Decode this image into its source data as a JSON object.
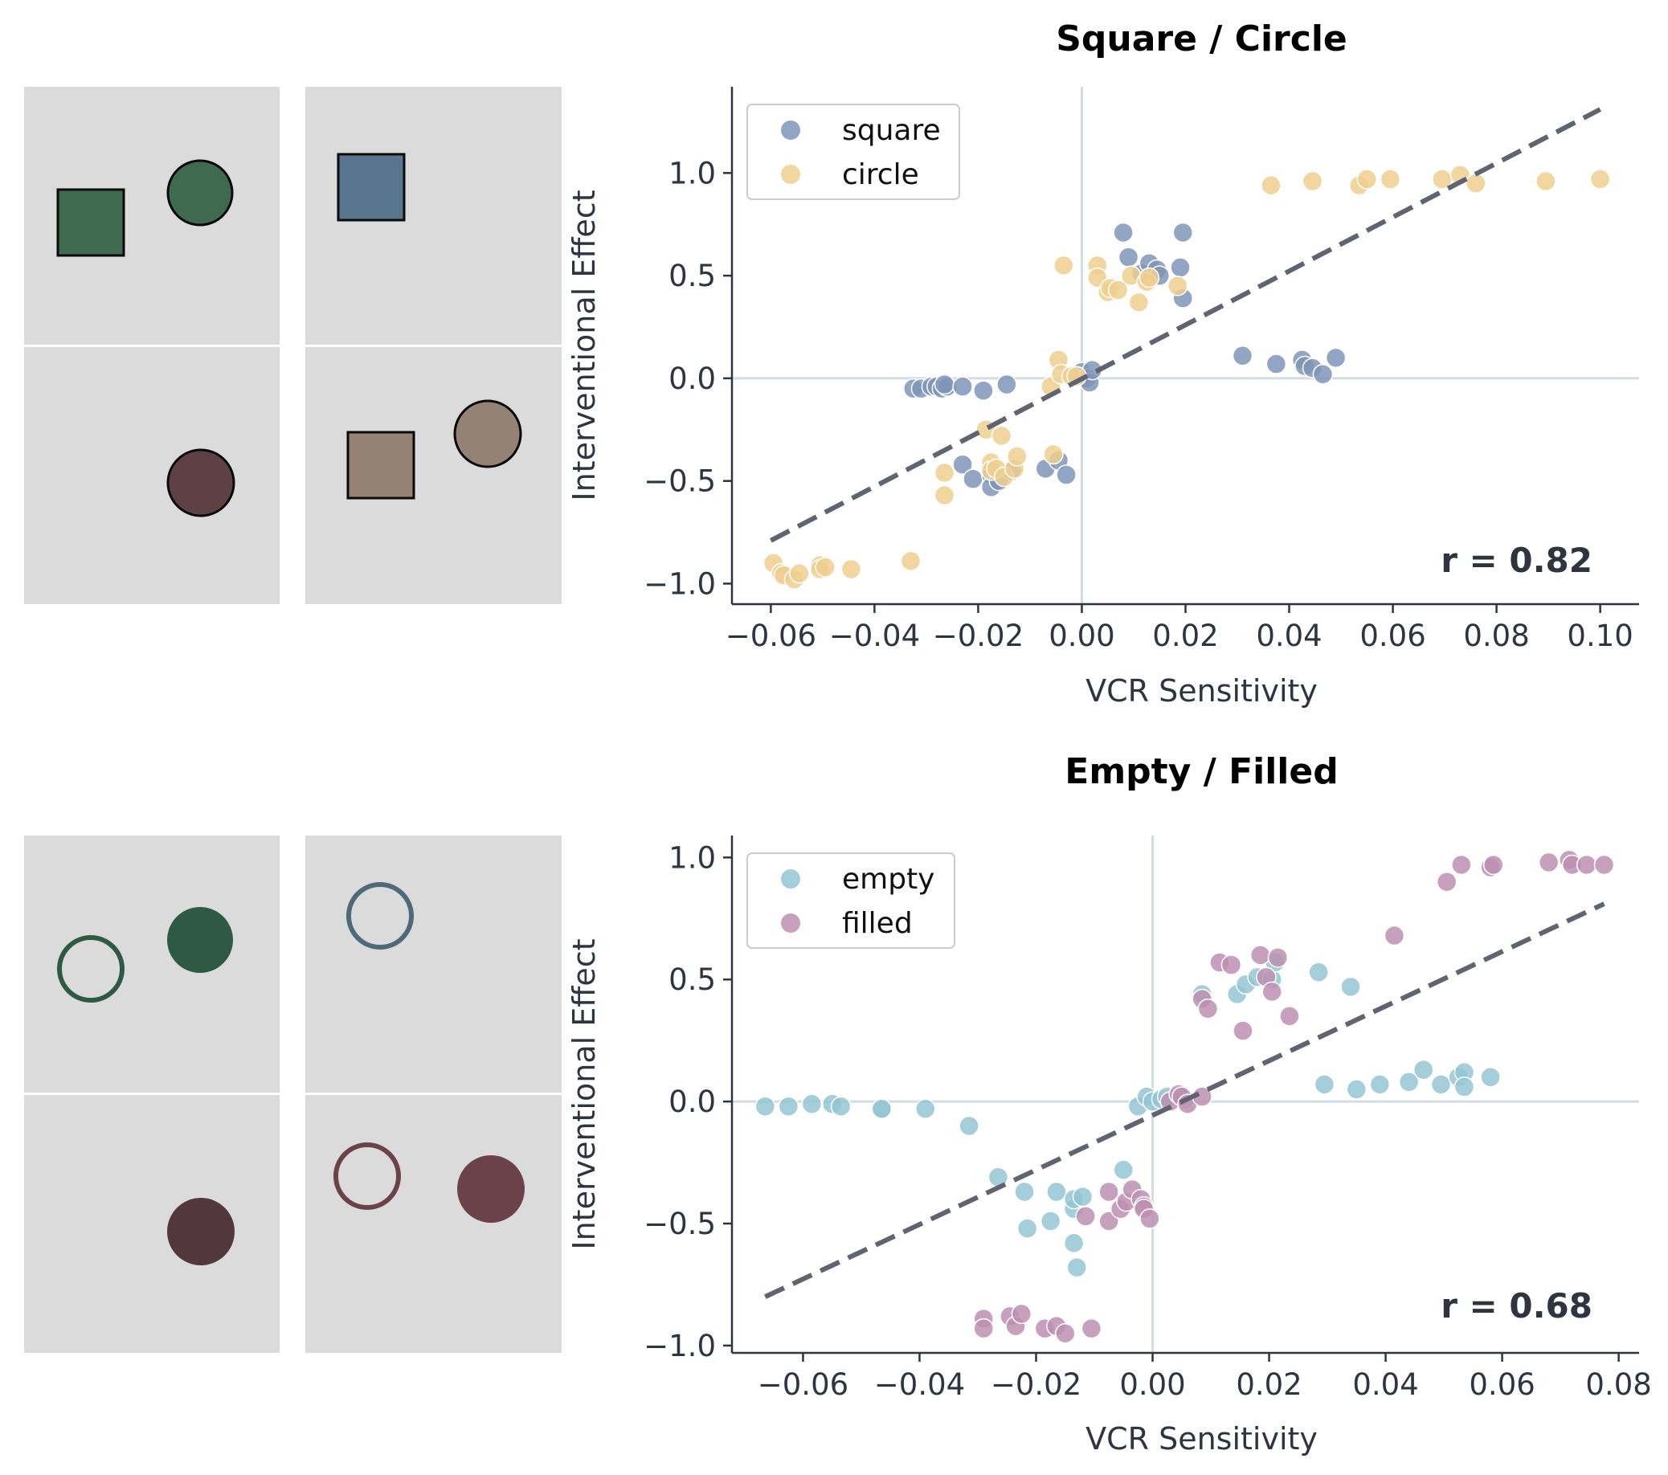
{
  "colors": {
    "panel_bg": "#dcdbdc",
    "square": "#7f95b8",
    "circle": "#efcf8f",
    "empty": "#93c5d3",
    "filled": "#bd8fb1",
    "fit_line": "#5f6470",
    "ref_line": "#d3dce5",
    "axis": "#2e3440"
  },
  "thumbnails": [
    {
      "group": "top",
      "cells": [
        {
          "shapes": [
            {
              "kind": "square-filled",
              "color": "#3f6a50"
            },
            {
              "kind": "circle-filled",
              "color": "#3f6a50"
            }
          ]
        },
        {
          "shapes": [
            {
              "kind": "square-filled",
              "color": "#58758f"
            }
          ]
        },
        {
          "shapes": [
            {
              "kind": "circle-filled",
              "color": "#5e4145"
            }
          ]
        },
        {
          "shapes": [
            {
              "kind": "square-filled",
              "color": "#948375"
            },
            {
              "kind": "circle-filled",
              "color": "#948375"
            }
          ]
        }
      ]
    },
    {
      "group": "bottom",
      "cells": [
        {
          "shapes": [
            {
              "kind": "circle-empty",
              "color": "#2e5a44"
            },
            {
              "kind": "circle-filled",
              "color": "#2e5a44"
            }
          ]
        },
        {
          "shapes": [
            {
              "kind": "circle-empty",
              "color": "#4e6a78"
            }
          ]
        },
        {
          "shapes": [
            {
              "kind": "circle-filled",
              "color": "#52373d"
            }
          ]
        },
        {
          "shapes": [
            {
              "kind": "circle-empty",
              "color": "#6b4249"
            },
            {
              "kind": "circle-filled",
              "color": "#6b4249"
            }
          ]
        }
      ]
    }
  ],
  "chart_data": [
    {
      "type": "scatter",
      "title": "Square / Circle",
      "xlabel": "VCR Sensitivity",
      "ylabel": "Interventional Effect",
      "xlim": [
        -0.0675,
        0.1075
      ],
      "ylim": [
        -1.1,
        1.42
      ],
      "xticks": [
        -0.06,
        -0.04,
        -0.02,
        0.0,
        0.02,
        0.04,
        0.06,
        0.08,
        0.1
      ],
      "xtick_labels": [
        "−0.06",
        "−0.04",
        "−0.02",
        "0.00",
        "0.02",
        "0.04",
        "0.06",
        "0.08",
        "0.10"
      ],
      "yticks": [
        -1.0,
        -0.5,
        0.0,
        0.5,
        1.0
      ],
      "ytick_labels": [
        "−1.0",
        "−0.5",
        "0.0",
        "0.5",
        "1.0"
      ],
      "legend_position": "top-left",
      "annotation": "r = 0.82",
      "fit_line": {
        "x": [
          -0.06,
          0.1
        ],
        "y": [
          -0.79,
          1.31
        ]
      },
      "series": [
        {
          "name": "square",
          "color": "#7f95b8",
          "points": [
            [
              -0.0325,
              -0.05
            ],
            [
              -0.031,
              -0.05
            ],
            [
              -0.029,
              -0.04
            ],
            [
              -0.028,
              -0.04
            ],
            [
              -0.027,
              -0.05
            ],
            [
              -0.026,
              -0.04
            ],
            [
              -0.0265,
              -0.03
            ],
            [
              -0.023,
              -0.04
            ],
            [
              -0.019,
              -0.06
            ],
            [
              -0.0145,
              -0.03
            ],
            [
              -0.023,
              -0.42
            ],
            [
              -0.021,
              -0.49
            ],
            [
              -0.0175,
              -0.47
            ],
            [
              -0.0175,
              -0.53
            ],
            [
              -0.016,
              -0.5
            ],
            [
              -0.0135,
              -0.45
            ],
            [
              -0.007,
              -0.44
            ],
            [
              -0.0045,
              -0.4
            ],
            [
              -0.003,
              -0.47
            ],
            [
              0.0,
              0.03
            ],
            [
              0.001,
              0.0
            ],
            [
              0.0015,
              -0.02
            ],
            [
              0.002,
              0.04
            ],
            [
              0.008,
              0.71
            ],
            [
              0.009,
              0.59
            ],
            [
              0.0115,
              0.51
            ],
            [
              0.013,
              0.56
            ],
            [
              0.0145,
              0.53
            ],
            [
              0.015,
              0.5
            ],
            [
              0.0195,
              0.71
            ],
            [
              0.019,
              0.54
            ],
            [
              0.0195,
              0.39
            ],
            [
              0.031,
              0.11
            ],
            [
              0.0375,
              0.07
            ],
            [
              0.0425,
              0.09
            ],
            [
              0.043,
              0.06
            ],
            [
              0.0445,
              0.05
            ],
            [
              0.0465,
              0.02
            ],
            [
              0.049,
              0.1
            ]
          ]
        },
        {
          "name": "circle",
          "color": "#efcf8f",
          "points": [
            [
              -0.0595,
              -0.9
            ],
            [
              -0.058,
              -0.95
            ],
            [
              -0.0575,
              -0.96
            ],
            [
              -0.0555,
              -0.98
            ],
            [
              -0.0545,
              -0.95
            ],
            [
              -0.0505,
              -0.91
            ],
            [
              -0.0505,
              -0.93
            ],
            [
              -0.0495,
              -0.92
            ],
            [
              -0.0445,
              -0.93
            ],
            [
              -0.033,
              -0.89
            ],
            [
              -0.0265,
              -0.46
            ],
            [
              -0.0265,
              -0.57
            ],
            [
              -0.0185,
              -0.25
            ],
            [
              -0.0175,
              -0.41
            ],
            [
              -0.0175,
              -0.45
            ],
            [
              -0.0165,
              -0.44
            ],
            [
              -0.0155,
              -0.28
            ],
            [
              -0.015,
              -0.48
            ],
            [
              -0.013,
              -0.44
            ],
            [
              -0.0125,
              -0.38
            ],
            [
              -0.0055,
              -0.37
            ],
            [
              -0.006,
              -0.04
            ],
            [
              -0.0045,
              0.09
            ],
            [
              -0.004,
              0.02
            ],
            [
              -0.002,
              0.01
            ],
            [
              -0.001,
              0.01
            ],
            [
              -0.0035,
              0.55
            ],
            [
              0.003,
              0.55
            ],
            [
              0.003,
              0.49
            ],
            [
              0.005,
              0.42
            ],
            [
              0.0055,
              0.44
            ],
            [
              0.007,
              0.43
            ],
            [
              0.0095,
              0.5
            ],
            [
              0.011,
              0.37
            ],
            [
              0.0125,
              0.47
            ],
            [
              0.013,
              0.49
            ],
            [
              0.0185,
              0.45
            ],
            [
              0.0365,
              0.94
            ],
            [
              0.0445,
              0.96
            ],
            [
              0.0535,
              0.94
            ],
            [
              0.055,
              0.97
            ],
            [
              0.0595,
              0.97
            ],
            [
              0.0695,
              0.97
            ],
            [
              0.073,
              0.99
            ],
            [
              0.076,
              0.95
            ],
            [
              0.0895,
              0.96
            ],
            [
              0.1,
              0.97
            ]
          ]
        }
      ]
    },
    {
      "type": "scatter",
      "title": "Empty / Filled",
      "xlabel": "VCR Sensitivity",
      "ylabel": "Interventional Effect",
      "xlim": [
        -0.0722,
        0.0835
      ],
      "ylim": [
        -1.03,
        1.09
      ],
      "xticks": [
        -0.06,
        -0.04,
        -0.02,
        0.0,
        0.02,
        0.04,
        0.06,
        0.08
      ],
      "xtick_labels": [
        "−0.06",
        "−0.04",
        "−0.02",
        "0.00",
        "0.02",
        "0.04",
        "0.06",
        "0.08"
      ],
      "yticks": [
        -1.0,
        -0.5,
        0.0,
        0.5,
        1.0
      ],
      "ytick_labels": [
        "−1.0",
        "−0.5",
        "0.0",
        "0.5",
        "1.0"
      ],
      "legend_position": "top-left",
      "annotation": "r = 0.68",
      "fit_line": {
        "x": [
          -0.0665,
          0.0775
        ],
        "y": [
          -0.8,
          0.81
        ]
      },
      "series": [
        {
          "name": "empty",
          "color": "#93c5d3",
          "points": [
            [
              -0.0665,
              -0.02
            ],
            [
              -0.0625,
              -0.02
            ],
            [
              -0.0585,
              -0.01
            ],
            [
              -0.055,
              -0.01
            ],
            [
              -0.0535,
              -0.02
            ],
            [
              -0.0465,
              -0.03
            ],
            [
              -0.0465,
              -0.03
            ],
            [
              -0.039,
              -0.03
            ],
            [
              -0.0315,
              -0.1
            ],
            [
              -0.0265,
              -0.31
            ],
            [
              -0.022,
              -0.37
            ],
            [
              -0.0215,
              -0.52
            ],
            [
              -0.0175,
              -0.49
            ],
            [
              -0.0165,
              -0.37
            ],
            [
              -0.0135,
              -0.44
            ],
            [
              -0.0135,
              -0.4
            ],
            [
              -0.012,
              -0.39
            ],
            [
              -0.0135,
              -0.58
            ],
            [
              -0.013,
              -0.68
            ],
            [
              -0.005,
              -0.28
            ],
            [
              -0.0025,
              -0.02
            ],
            [
              -0.001,
              0.02
            ],
            [
              0.0,
              0.0
            ],
            [
              0.0015,
              0.01
            ],
            [
              0.0025,
              0.02
            ],
            [
              0.0055,
              0.01
            ],
            [
              0.0085,
              0.44
            ],
            [
              0.0145,
              0.44
            ],
            [
              0.016,
              0.48
            ],
            [
              0.018,
              0.51
            ],
            [
              0.0205,
              0.5
            ],
            [
              0.021,
              0.57
            ],
            [
              0.0285,
              0.53
            ],
            [
              0.034,
              0.47
            ],
            [
              0.0295,
              0.07
            ],
            [
              0.035,
              0.05
            ],
            [
              0.039,
              0.07
            ],
            [
              0.044,
              0.08
            ],
            [
              0.0465,
              0.13
            ],
            [
              0.0495,
              0.07
            ],
            [
              0.0525,
              0.1
            ],
            [
              0.0535,
              0.12
            ],
            [
              0.0535,
              0.06
            ],
            [
              0.058,
              0.1
            ]
          ]
        },
        {
          "name": "filled",
          "color": "#bd8fb1",
          "points": [
            [
              -0.029,
              -0.89
            ],
            [
              -0.029,
              -0.93
            ],
            [
              -0.0245,
              -0.88
            ],
            [
              -0.0235,
              -0.92
            ],
            [
              -0.0225,
              -0.87
            ],
            [
              -0.0185,
              -0.93
            ],
            [
              -0.0165,
              -0.92
            ],
            [
              -0.015,
              -0.95
            ],
            [
              -0.0105,
              -0.93
            ],
            [
              -0.0115,
              -0.47
            ],
            [
              -0.0075,
              -0.37
            ],
            [
              -0.0075,
              -0.49
            ],
            [
              -0.0055,
              -0.44
            ],
            [
              -0.0045,
              -0.41
            ],
            [
              -0.0035,
              -0.36
            ],
            [
              -0.002,
              -0.4
            ],
            [
              -0.0015,
              -0.43
            ],
            [
              -0.0015,
              -0.44
            ],
            [
              -0.0005,
              -0.48
            ],
            [
              0.003,
              0.0
            ],
            [
              0.0045,
              0.03
            ],
            [
              0.005,
              0.02
            ],
            [
              0.006,
              -0.01
            ],
            [
              0.0085,
              0.02
            ],
            [
              0.0085,
              0.42
            ],
            [
              0.0095,
              0.38
            ],
            [
              0.0115,
              0.57
            ],
            [
              0.0135,
              0.56
            ],
            [
              0.0155,
              0.29
            ],
            [
              0.0185,
              0.6
            ],
            [
              0.0195,
              0.51
            ],
            [
              0.0205,
              0.45
            ],
            [
              0.0215,
              0.59
            ],
            [
              0.0235,
              0.35
            ],
            [
              0.0415,
              0.68
            ],
            [
              0.0505,
              0.9
            ],
            [
              0.053,
              0.97
            ],
            [
              0.058,
              0.96
            ],
            [
              0.0585,
              0.97
            ],
            [
              0.068,
              0.98
            ],
            [
              0.0715,
              0.99
            ],
            [
              0.072,
              0.97
            ],
            [
              0.0745,
              0.97
            ],
            [
              0.0775,
              0.97
            ]
          ]
        }
      ]
    }
  ]
}
